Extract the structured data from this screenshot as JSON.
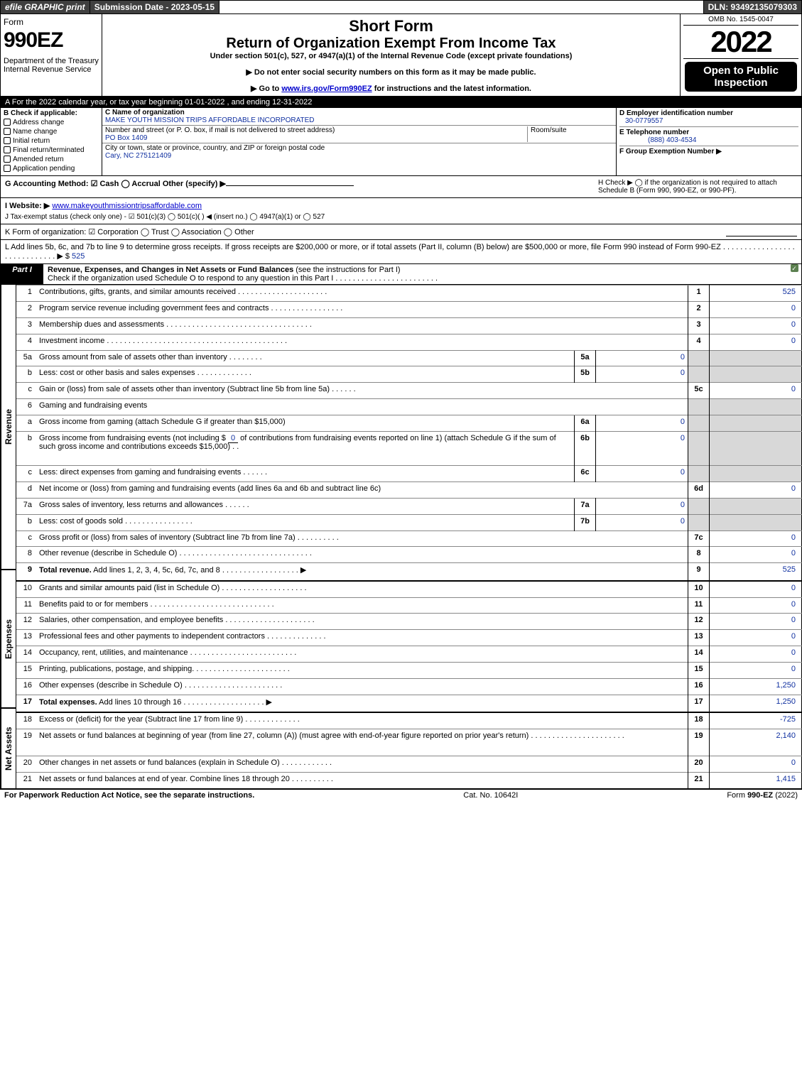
{
  "topbar": {
    "efile": "efile GRAPHIC print",
    "subdate": "Submission Date - 2023-05-15",
    "dln": "DLN: 93492135079303"
  },
  "header": {
    "form_label": "Form",
    "form_num": "990EZ",
    "dept": "Department of the Treasury\nInternal Revenue Service",
    "title1": "Short Form",
    "title2": "Return of Organization Exempt From Income Tax",
    "sub": "Under section 501(c), 527, or 4947(a)(1) of the Internal Revenue Code (except private foundations)",
    "note1": "▶ Do not enter social security numbers on this form as it may be made public.",
    "note2_pre": "▶ Go to ",
    "note2_link": "www.irs.gov/Form990EZ",
    "note2_post": " for instructions and the latest information.",
    "omb": "OMB No. 1545-0047",
    "year": "2022",
    "inspect": "Open to Public Inspection"
  },
  "A": "A  For the 2022 calendar year, or tax year beginning 01-01-2022 , and ending 12-31-2022",
  "B": {
    "title": "B  Check if applicable:",
    "items": [
      "Address change",
      "Name change",
      "Initial return",
      "Final return/terminated",
      "Amended return",
      "Application pending"
    ]
  },
  "C": {
    "name_label": "C Name of organization",
    "name": "MAKE YOUTH MISSION TRIPS AFFORDABLE INCORPORATED",
    "street_label": "Number and street (or P. O. box, if mail is not delivered to street address)",
    "street": "PO Box 1409",
    "room_label": "Room/suite",
    "city_label": "City or town, state or province, country, and ZIP or foreign postal code",
    "city": "Cary, NC 275121409"
  },
  "D": {
    "ein_label": "D Employer identification number",
    "ein": "30-0779557",
    "phone_label": "E Telephone number",
    "phone": "(888) 403-4534",
    "group_label": "F Group Exemption Number  ▶"
  },
  "G": "G Accounting Method:   ☑ Cash   ◯ Accrual   Other (specify) ▶",
  "H": "H  Check ▶  ◯  if the organization is not required to attach Schedule B (Form 990, 990-EZ, or 990-PF).",
  "I": {
    "label": "I Website: ▶",
    "url": "www.makeyouthmissiontripsaffordable.com"
  },
  "J": "J Tax-exempt status (check only one) - ☑ 501(c)(3)  ◯ 501(c)( ) ◀ (insert no.)  ◯ 4947(a)(1) or  ◯ 527",
  "K": "K Form of organization:  ☑ Corporation  ◯ Trust  ◯ Association  ◯ Other",
  "L": {
    "text": "L Add lines 5b, 6c, and 7b to line 9 to determine gross receipts. If gross receipts are $200,000 or more, or if total assets (Part II, column (B) below) are $500,000 or more, file Form 990 instead of Form 990-EZ . . . . . . . . . . . . . . . . . . . . . . . . . . . . . ▶ $",
    "val": "525"
  },
  "partI": {
    "label": "Part I",
    "title": "Revenue, Expenses, and Changes in Net Assets or Fund Balances",
    "note": " (see the instructions for Part I)",
    "check": "Check if the organization used Schedule O to respond to any question in this Part I . . . . . . . . . . . . . . . . . . . . . . . ."
  },
  "sections": {
    "revenue": "Revenue",
    "expenses": "Expenses",
    "net": "Net Assets"
  },
  "lines": [
    {
      "n": "1",
      "desc": "Contributions, gifts, grants, and similar amounts received . . . . . . . . . . . . . . . . . . . . .",
      "v": "1",
      "amt": "525"
    },
    {
      "n": "2",
      "desc": "Program service revenue including government fees and contracts . . . . . . . . . . . . . . . . .",
      "v": "2",
      "amt": "0"
    },
    {
      "n": "3",
      "desc": "Membership dues and assessments . . . . . . . . . . . . . . . . . . . . . . . . . . . . . . . . . .",
      "v": "3",
      "amt": "0"
    },
    {
      "n": "4",
      "desc": "Investment income . . . . . . . . . . . . . . . . . . . . . . . . . . . . . . . . . . . . . . . . . .",
      "v": "4",
      "amt": "0"
    },
    {
      "n": "5a",
      "desc": "Gross amount from sale of assets other than inventory . . . . . . . .",
      "sub": "5a",
      "subamt": "0",
      "gray": true
    },
    {
      "n": "b",
      "desc": "Less: cost or other basis and sales expenses . . . . . . . . . . . . .",
      "sub": "5b",
      "subamt": "0",
      "gray": true
    },
    {
      "n": "c",
      "desc": "Gain or (loss) from sale of assets other than inventory (Subtract line 5b from line 5a) . . . . . .",
      "v": "5c",
      "amt": "0"
    },
    {
      "n": "6",
      "desc": "Gaming and fundraising events",
      "gray": true
    },
    {
      "n": "a",
      "desc": "Gross income from gaming (attach Schedule G if greater than $15,000)",
      "sub": "6a",
      "subamt": "0",
      "gray": true
    },
    {
      "n": "b",
      "desc": "Gross income from fundraising events (not including $ 0          of contributions from fundraising events reported on line 1) (attach Schedule G if the sum of such gross income and contributions exceeds $15,000)   . .",
      "sub": "6b",
      "subamt": "0",
      "gray": true,
      "tall": true,
      "zerounder": true
    },
    {
      "n": "c",
      "desc": "Less: direct expenses from gaming and fundraising events . . . . . .",
      "sub": "6c",
      "subamt": "0",
      "gray": true
    },
    {
      "n": "d",
      "desc": "Net income or (loss) from gaming and fundraising events (add lines 6a and 6b and subtract line 6c)",
      "v": "6d",
      "amt": "0"
    },
    {
      "n": "7a",
      "desc": "Gross sales of inventory, less returns and allowances . . . . . .",
      "sub": "7a",
      "subamt": "0",
      "gray": true
    },
    {
      "n": "b",
      "desc": "Less: cost of goods sold      . . . . . . . . . . . . . . . .",
      "sub": "7b",
      "subamt": "0",
      "gray": true
    },
    {
      "n": "c",
      "desc": "Gross profit or (loss) from sales of inventory (Subtract line 7b from line 7a) . . . . . . . . . .",
      "v": "7c",
      "amt": "0"
    },
    {
      "n": "8",
      "desc": "Other revenue (describe in Schedule O) . . . . . . . . . . . . . . . . . . . . . . . . . . . . . . .",
      "v": "8",
      "amt": "0"
    },
    {
      "n": "9",
      "desc": "Total revenue. Add lines 1, 2, 3, 4, 5c, 6d, 7c, and 8  . . . . . . . . . . . . . . . . . . ▶",
      "v": "9",
      "amt": "525",
      "bold": true
    }
  ],
  "expenses": [
    {
      "n": "10",
      "desc": "Grants and similar amounts paid (list in Schedule O) . . . . . . . . . . . . . . . . . . . .",
      "v": "10",
      "amt": "0"
    },
    {
      "n": "11",
      "desc": "Benefits paid to or for members     . . . . . . . . . . . . . . . . . . . . . . . . . . . . .",
      "v": "11",
      "amt": "0"
    },
    {
      "n": "12",
      "desc": "Salaries, other compensation, and employee benefits . . . . . . . . . . . . . . . . . . . . .",
      "v": "12",
      "amt": "0"
    },
    {
      "n": "13",
      "desc": "Professional fees and other payments to independent contractors . . . . . . . . . . . . . .",
      "v": "13",
      "amt": "0"
    },
    {
      "n": "14",
      "desc": "Occupancy, rent, utilities, and maintenance . . . . . . . . . . . . . . . . . . . . . . . . .",
      "v": "14",
      "amt": "0"
    },
    {
      "n": "15",
      "desc": "Printing, publications, postage, and shipping. . . . . . . . . . . . . . . . . . . . . . .",
      "v": "15",
      "amt": "0"
    },
    {
      "n": "16",
      "desc": "Other expenses (describe in Schedule O)     . . . . . . . . . . . . . . . . . . . . . . .",
      "v": "16",
      "amt": "1,250"
    },
    {
      "n": "17",
      "desc": "Total expenses. Add lines 10 through 16     . . . . . . . . . . . . . . . . . . . ▶",
      "v": "17",
      "amt": "1,250",
      "bold": true
    }
  ],
  "net": [
    {
      "n": "18",
      "desc": "Excess or (deficit) for the year (Subtract line 17 from line 9)      . . . . . . . . . . . . .",
      "v": "18",
      "amt": "-725"
    },
    {
      "n": "19",
      "desc": "Net assets or fund balances at beginning of year (from line 27, column (A)) (must agree with end-of-year figure reported on prior year's return) . . . . . . . . . . . . . . . . . . . . . .",
      "v": "19",
      "amt": "2,140",
      "tall": true,
      "graytop": true
    },
    {
      "n": "20",
      "desc": "Other changes in net assets or fund balances (explain in Schedule O) . . . . . . . . . . . .",
      "v": "20",
      "amt": "0"
    },
    {
      "n": "21",
      "desc": "Net assets or fund balances at end of year. Combine lines 18 through 20 . . . . . . . . . .",
      "v": "21",
      "amt": "1,415"
    }
  ],
  "footer": {
    "left": "For Paperwork Reduction Act Notice, see the separate instructions.",
    "mid": "Cat. No. 10642I",
    "right_pre": "Form ",
    "right_b": "990-EZ",
    "right_post": " (2022)"
  },
  "colors": {
    "blue": "#1030a0",
    "link": "#0000cc",
    "greenchk": "#5c8050",
    "gray": "#d8d8d8",
    "darkbar": "#404040"
  }
}
